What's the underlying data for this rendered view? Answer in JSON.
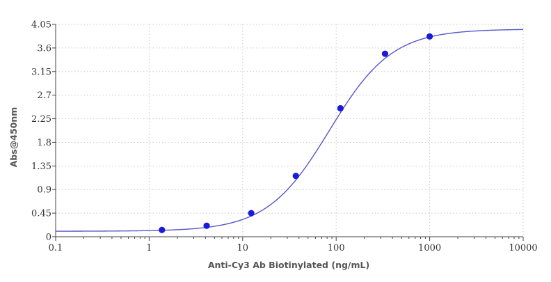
{
  "chart_data": {
    "type": "scatter",
    "title": "",
    "xlabel": "Anti-Cy3 Ab Biotinylated (ng/mL)",
    "ylabel": "Abs@450nm",
    "x_scale": "log",
    "xlim": [
      0.1,
      10000
    ],
    "ylim": [
      0,
      4.05
    ],
    "x_ticks": [
      0.1,
      1,
      10,
      100,
      1000,
      10000
    ],
    "x_tick_labels": [
      "0.1",
      "1",
      "10",
      "100",
      "1000",
      "10000"
    ],
    "y_ticks": [
      0,
      0.45,
      0.9,
      1.35,
      1.8,
      2.25,
      2.7,
      3.15,
      3.6,
      4.05
    ],
    "y_tick_labels": [
      "0",
      "0.45",
      "0.9",
      "1.35",
      "1.8",
      "2.25",
      "2.7",
      "3.15",
      "3.6",
      "4.05"
    ],
    "grid": true,
    "legend": "none",
    "series": [
      {
        "kind": "points",
        "x": [
          1.37,
          4.12,
          12.35,
          37.04,
          111.1,
          333.3,
          1000
        ],
        "y": [
          0.13,
          0.21,
          0.45,
          1.16,
          2.45,
          3.49,
          3.82
        ],
        "color": "#1a1adb"
      },
      {
        "kind": "fit-curve",
        "model": "4PL",
        "bottom": 0.105,
        "top": 3.96,
        "ec50": 85,
        "hill": 1.3,
        "color": "#5555cc"
      }
    ]
  }
}
